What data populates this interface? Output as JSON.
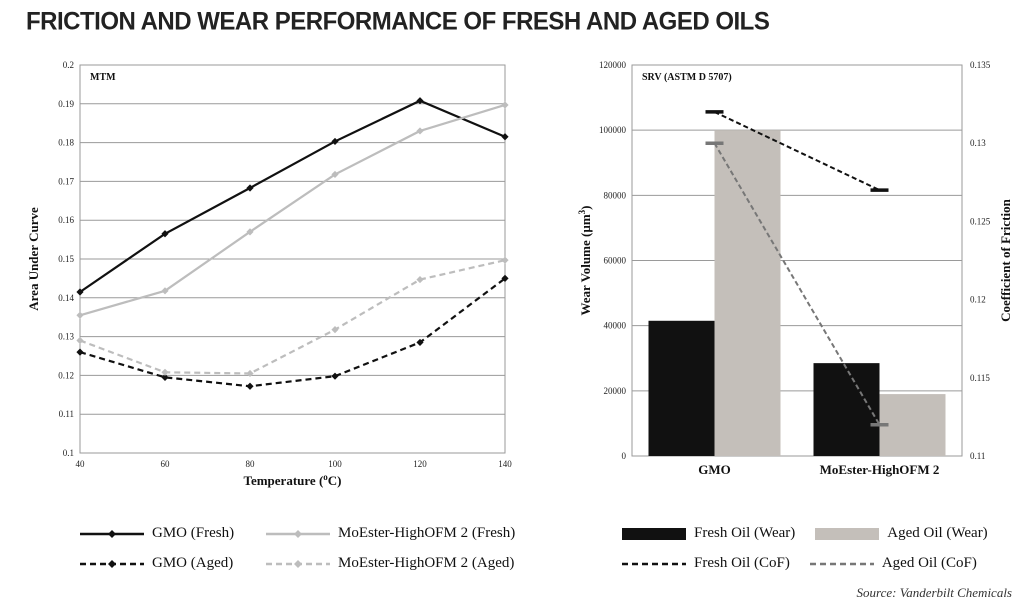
{
  "page": {
    "title": "FRICTION AND WEAR PERFORMANCE OF FRESH AND AGED OILS",
    "source": "Source: Vanderbilt Chemicals"
  },
  "chart_data": [
    {
      "type": "line",
      "title": "MTM",
      "xlabel": "Temperature (°C)",
      "xlabel_parts": {
        "pre": "Temperature (",
        "sup": "o",
        "post": "C)"
      },
      "ylabel": "Area Under Curve",
      "x": [
        40,
        60,
        80,
        100,
        120,
        140
      ],
      "xlim": [
        40,
        140
      ],
      "ylim": [
        0.1,
        0.2
      ],
      "x_ticks": [
        "40",
        "60",
        "80",
        "100",
        "120",
        "140"
      ],
      "y_ticks": [
        "0.1",
        "0.11",
        "0.12",
        "0.13",
        "0.14",
        "0.15",
        "0.16",
        "0.17",
        "0.18",
        "0.19",
        "0.2"
      ],
      "grid": true,
      "series": [
        {
          "name": "GMO (Fresh)",
          "values": [
            0.1415,
            0.1565,
            0.1683,
            0.1803,
            0.1908,
            0.1815
          ],
          "color": "#111111",
          "dash": "solid"
        },
        {
          "name": "MoEster-HighOFM 2 (Fresh)",
          "values": [
            0.1355,
            0.1418,
            0.157,
            0.1718,
            0.183,
            0.1897
          ],
          "color": "#bdbdbd",
          "dash": "solid"
        },
        {
          "name": "GMO (Aged)",
          "values": [
            0.126,
            0.1195,
            0.1172,
            0.1198,
            0.1285,
            0.145
          ],
          "color": "#111111",
          "dash": "dashed"
        },
        {
          "name": "MoEster-HighOFM 2 (Aged)",
          "values": [
            0.129,
            0.1208,
            0.1205,
            0.1318,
            0.1447,
            0.1497
          ],
          "color": "#bdbdbd",
          "dash": "dashed"
        }
      ],
      "legend": [
        {
          "label": "GMO (Fresh)",
          "color": "#111111",
          "dash": "solid"
        },
        {
          "label": "MoEster-HighOFM 2 (Fresh)",
          "color": "#bdbdbd",
          "dash": "solid"
        },
        {
          "label": "GMO (Aged)",
          "color": "#111111",
          "dash": "dashed"
        },
        {
          "label": "MoEster-HighOFM 2 (Aged)",
          "color": "#bdbdbd",
          "dash": "dashed"
        }
      ]
    },
    {
      "type": "bar",
      "title": "SRV (ASTM D 5707)",
      "categories": [
        "GMO",
        "MoEster-HighOFM 2"
      ],
      "ylabel": "Wear Volume (µm³)",
      "ylabel_parts": {
        "pre": "Wear Volume (",
        "mu": "µ",
        "m": "m",
        "sup": "3",
        "post": ")"
      },
      "y2label": "Coefficient of Friction",
      "ylim": [
        0,
        120000
      ],
      "y2lim": [
        0.11,
        0.135
      ],
      "y_ticks": [
        "0",
        "20000",
        "40000",
        "60000",
        "80000",
        "100000",
        "120000"
      ],
      "y2_ticks": [
        "0.11",
        "0.115",
        "0.12",
        "0.125",
        "0.13",
        "0.135"
      ],
      "grid": true,
      "bar_series": [
        {
          "name": "Fresh Oil (Wear)",
          "values": [
            41500,
            28500
          ],
          "color": "#111111"
        },
        {
          "name": "Aged Oil (Wear)",
          "values": [
            100000,
            19000
          ],
          "color": "#c4bfba"
        }
      ],
      "line_series": [
        {
          "name": "Fresh Oil (CoF)",
          "values": [
            0.132,
            0.127
          ],
          "color": "#111111",
          "dash": "dashed"
        },
        {
          "name": "Aged Oil (CoF)",
          "values": [
            0.13,
            0.112
          ],
          "color": "#777777",
          "dash": "dashed"
        }
      ],
      "legend": [
        {
          "label": "Fresh Oil (Wear)",
          "color": "#111111",
          "kind": "bar"
        },
        {
          "label": "Aged Oil (Wear)",
          "color": "#c4bfba",
          "kind": "bar"
        },
        {
          "label": "Fresh Oil (CoF)",
          "color": "#111111",
          "kind": "line"
        },
        {
          "label": "Aged Oil (CoF)",
          "color": "#777777",
          "kind": "line"
        }
      ]
    }
  ]
}
